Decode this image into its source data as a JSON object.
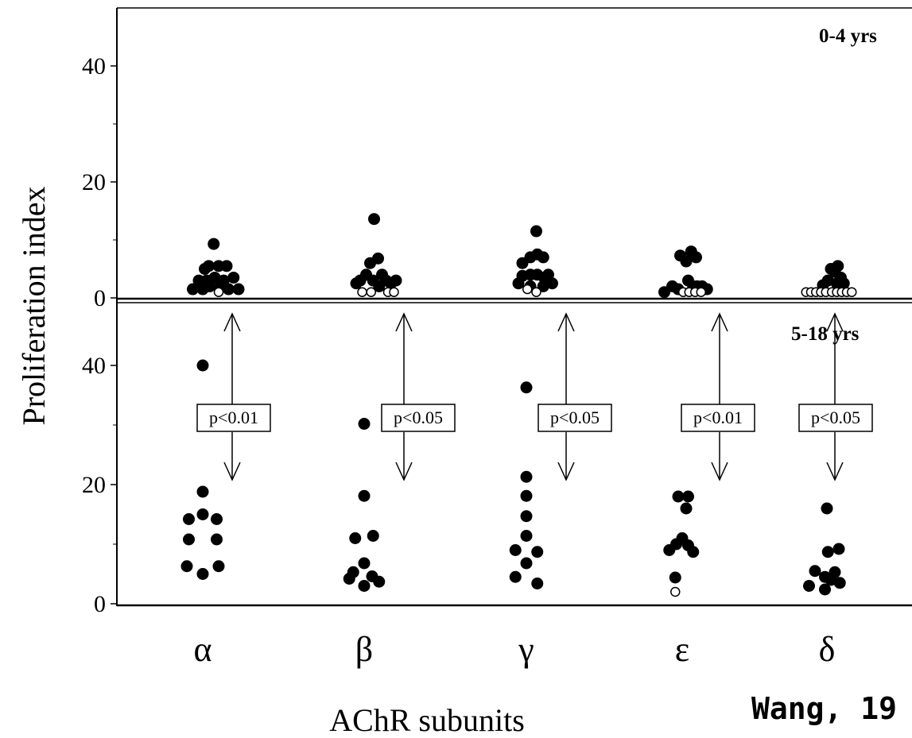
{
  "chart_data": {
    "type": "scatter",
    "ylabel": "Proliferation index",
    "xlabel": "AChR subunits",
    "categories": [
      "α",
      "β",
      "γ",
      "ε",
      "δ"
    ],
    "citation": "Wang, 19",
    "legend": {
      "filled": "",
      "open": ""
    },
    "panels": [
      {
        "label": "0-4 yrs",
        "ylim": [
          0,
          48
        ],
        "yticks": [
          0,
          20,
          40
        ],
        "groups": [
          {
            "category": "α",
            "filled": [
              {
                "dx": -0.5,
                "y": 1.5
              },
              {
                "dx": -0.2,
                "y": 3
              },
              {
                "dx": 0.1,
                "y": 5
              },
              {
                "dx": 0.3,
                "y": 5.5
              },
              {
                "dx": 0.55,
                "y": 9.3
              },
              {
                "dx": 0.8,
                "y": 5.5
              },
              {
                "dx": 1.05,
                "y": 3
              },
              {
                "dx": 1.3,
                "y": 1.5
              },
              {
                "dx": 0,
                "y": 1.5
              },
              {
                "dx": 0.35,
                "y": 2
              },
              {
                "dx": 0.6,
                "y": 3.5
              },
              {
                "dx": 0.9,
                "y": 2
              },
              {
                "dx": 1.2,
                "y": 5.5
              },
              {
                "dx": 1.55,
                "y": 3.5
              },
              {
                "dx": 1.8,
                "y": 1.5
              },
              {
                "dx": 0.2,
                "y": 3
              }
            ],
            "open": [
              {
                "dx": 0.8,
                "y": 1
              }
            ]
          },
          {
            "category": "β",
            "filled": [
              {
                "dx": -0.4,
                "y": 2.5
              },
              {
                "dx": -0.2,
                "y": 3
              },
              {
                "dx": 0.1,
                "y": 4
              },
              {
                "dx": 0.3,
                "y": 6
              },
              {
                "dx": 0.5,
                "y": 13.6
              },
              {
                "dx": 0.7,
                "y": 6.8
              },
              {
                "dx": 0.9,
                "y": 4
              },
              {
                "dx": 1.1,
                "y": 3
              },
              {
                "dx": 1.35,
                "y": 2.5
              },
              {
                "dx": 1.6,
                "y": 3
              },
              {
                "dx": 0.45,
                "y": 3
              },
              {
                "dx": 0.75,
                "y": 2
              }
            ],
            "open": [
              {
                "dx": -0.1,
                "y": 1
              },
              {
                "dx": 0.35,
                "y": 1
              },
              {
                "dx": 1.2,
                "y": 1
              },
              {
                "dx": 1.5,
                "y": 1
              }
            ]
          },
          {
            "category": "γ",
            "filled": [
              {
                "dx": -0.4,
                "y": 2.5
              },
              {
                "dx": -0.2,
                "y": 6
              },
              {
                "dx": -0.2,
                "y": 3.8
              },
              {
                "dx": 0.2,
                "y": 7
              },
              {
                "dx": 0.2,
                "y": 4
              },
              {
                "dx": 0.2,
                "y": 2
              },
              {
                "dx": 0.5,
                "y": 11.5
              },
              {
                "dx": 0.55,
                "y": 7.5
              },
              {
                "dx": 0.55,
                "y": 4
              },
              {
                "dx": 0.85,
                "y": 7
              },
              {
                "dx": 0.9,
                "y": 3.5
              },
              {
                "dx": 0.85,
                "y": 2
              },
              {
                "dx": 1.1,
                "y": 4
              },
              {
                "dx": 1.3,
                "y": 2.5
              }
            ],
            "open": [
              {
                "dx": 0.05,
                "y": 1.5
              },
              {
                "dx": 0.5,
                "y": 1
              }
            ]
          },
          {
            "category": "ε",
            "filled": [
              {
                "dx": -0.9,
                "y": 1
              },
              {
                "dx": -0.5,
                "y": 2
              },
              {
                "dx": -0.1,
                "y": 7.3
              },
              {
                "dx": -0.2,
                "y": 1.5
              },
              {
                "dx": 0.2,
                "y": 6.3
              },
              {
                "dx": 0.3,
                "y": 3
              },
              {
                "dx": 0.45,
                "y": 8
              },
              {
                "dx": 0.55,
                "y": 2
              },
              {
                "dx": 0.7,
                "y": 7
              },
              {
                "dx": 0.75,
                "y": 2
              },
              {
                "dx": 1.0,
                "y": 2
              },
              {
                "dx": 1.25,
                "y": 1.5
              }
            ],
            "open": [
              {
                "dx": 0.05,
                "y": 1
              },
              {
                "dx": 0.35,
                "y": 1
              },
              {
                "dx": 0.65,
                "y": 1
              },
              {
                "dx": 0.95,
                "y": 1
              }
            ]
          },
          {
            "category": "δ",
            "filled": [
              {
                "dx": -0.2,
                "y": 2.2
              },
              {
                "dx": 0.05,
                "y": 3
              },
              {
                "dx": 0.2,
                "y": 5
              },
              {
                "dx": 0.4,
                "y": 4.5
              },
              {
                "dx": 0.55,
                "y": 5.5
              },
              {
                "dx": 0.7,
                "y": 3.5
              },
              {
                "dx": 0.85,
                "y": 2.5
              },
              {
                "dx": 0.5,
                "y": 2.5
              }
            ],
            "open": [
              {
                "dx": -1.05,
                "y": 1
              },
              {
                "dx": -0.8,
                "y": 1
              },
              {
                "dx": -0.55,
                "y": 1
              },
              {
                "dx": -0.3,
                "y": 1
              },
              {
                "dx": -0.05,
                "y": 1
              },
              {
                "dx": 0.25,
                "y": 1
              },
              {
                "dx": 0.5,
                "y": 1
              },
              {
                "dx": 0.75,
                "y": 1
              },
              {
                "dx": 1.0,
                "y": 1
              },
              {
                "dx": 1.25,
                "y": 1
              }
            ]
          }
        ]
      },
      {
        "label": "5-18 yrs",
        "ylim": [
          0,
          47
        ],
        "yticks": [
          0,
          20,
          40
        ],
        "groups": [
          {
            "category": "α",
            "filled": [
              {
                "dx": 0,
                "y": 40
              },
              {
                "dx": 0,
                "y": 18.8
              },
              {
                "dx": -0.7,
                "y": 14.2
              },
              {
                "dx": 0,
                "y": 15
              },
              {
                "dx": 0.7,
                "y": 14.2
              },
              {
                "dx": -0.7,
                "y": 10.8
              },
              {
                "dx": 0.7,
                "y": 10.8
              },
              {
                "dx": -0.8,
                "y": 6.3
              },
              {
                "dx": 0,
                "y": 5
              },
              {
                "dx": 0.8,
                "y": 6.3
              }
            ],
            "open": []
          },
          {
            "category": "β",
            "filled": [
              {
                "dx": 0,
                "y": 30.2
              },
              {
                "dx": 0,
                "y": 18.1
              },
              {
                "dx": -0.45,
                "y": 11
              },
              {
                "dx": 0.45,
                "y": 11.4
              },
              {
                "dx": 0,
                "y": 6.8
              },
              {
                "dx": -0.55,
                "y": 5.3
              },
              {
                "dx": -0.75,
                "y": 4.2
              },
              {
                "dx": 0.4,
                "y": 4.6
              },
              {
                "dx": 0.75,
                "y": 3.7
              },
              {
                "dx": 0,
                "y": 3
              }
            ],
            "open": []
          },
          {
            "category": "γ",
            "filled": [
              {
                "dx": 0,
                "y": 36.3
              },
              {
                "dx": 0,
                "y": 21.3
              },
              {
                "dx": 0,
                "y": 18.1
              },
              {
                "dx": 0,
                "y": 14.7
              },
              {
                "dx": 0,
                "y": 11.4
              },
              {
                "dx": -0.55,
                "y": 9
              },
              {
                "dx": 0.55,
                "y": 8.7
              },
              {
                "dx": 0,
                "y": 6.8
              },
              {
                "dx": -0.55,
                "y": 4.5
              },
              {
                "dx": 0.55,
                "y": 3.4
              }
            ],
            "open": []
          },
          {
            "category": "ε",
            "filled": [
              {
                "dx": -0.2,
                "y": 18
              },
              {
                "dx": 0.3,
                "y": 18
              },
              {
                "dx": 0.2,
                "y": 16
              },
              {
                "dx": 0,
                "y": 11
              },
              {
                "dx": -0.3,
                "y": 10
              },
              {
                "dx": -0.65,
                "y": 9
              },
              {
                "dx": 0.3,
                "y": 9.8
              },
              {
                "dx": 0.55,
                "y": 8.7
              },
              {
                "dx": -0.35,
                "y": 4.4
              }
            ],
            "open": [
              {
                "dx": -0.35,
                "y": 2
              }
            ]
          },
          {
            "category": "δ",
            "filled": [
              {
                "dx": 0,
                "y": 16
              },
              {
                "dx": 0.6,
                "y": 9.2
              },
              {
                "dx": 0.05,
                "y": 8.7
              },
              {
                "dx": -0.6,
                "y": 5.5
              },
              {
                "dx": 0.4,
                "y": 5.3
              },
              {
                "dx": -0.1,
                "y": 4.5
              },
              {
                "dx": 0.2,
                "y": 4
              },
              {
                "dx": 0.65,
                "y": 3.5
              },
              {
                "dx": -0.9,
                "y": 3
              },
              {
                "dx": -0.1,
                "y": 2.4
              }
            ],
            "open": []
          }
        ]
      }
    ],
    "comparisons": [
      {
        "category": "α",
        "p_label": "p<0.01"
      },
      {
        "category": "β",
        "p_label": "p<0.05"
      },
      {
        "category": "γ",
        "p_label": "p<0.05"
      },
      {
        "category": "ε",
        "p_label": "p<0.01"
      },
      {
        "category": "δ",
        "p_label": "p<0.05"
      }
    ],
    "colors": {
      "ink": "#000000",
      "background": "#ffffff"
    }
  }
}
